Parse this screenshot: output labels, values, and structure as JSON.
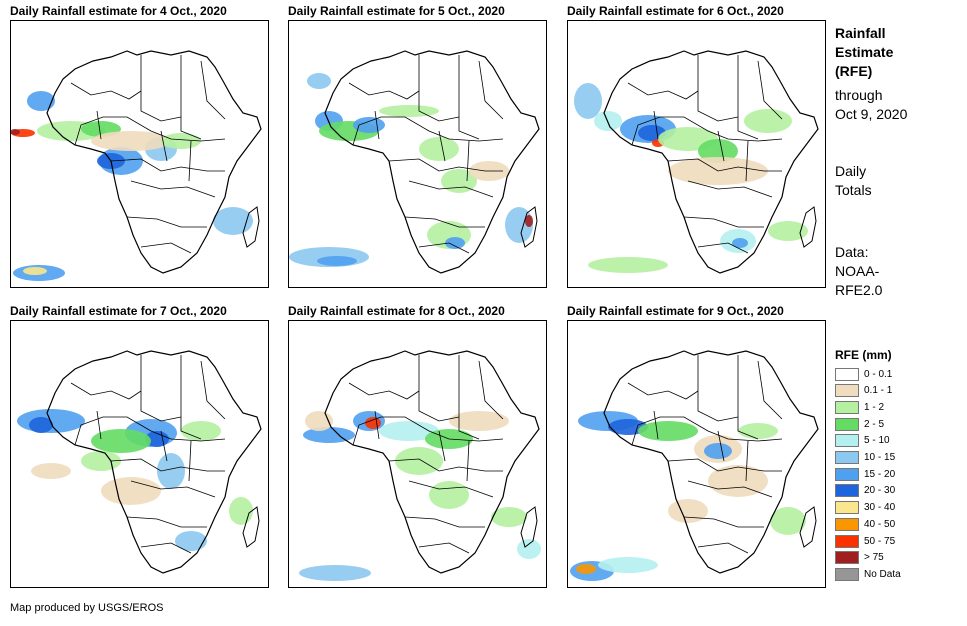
{
  "panels": [
    {
      "title": "Daily Rainfall estimate for 4 Oct., 2020"
    },
    {
      "title": "Daily Rainfall estimate for 5 Oct., 2020"
    },
    {
      "title": "Daily Rainfall estimate for 6 Oct., 2020"
    },
    {
      "title": "Daily Rainfall estimate for 7 Oct., 2020"
    },
    {
      "title": "Daily Rainfall estimate for 8 Oct., 2020"
    },
    {
      "title": "Daily Rainfall estimate for 9 Oct., 2020"
    }
  ],
  "sidebar": {
    "title_lines": [
      "Rainfall",
      "Estimate",
      "(RFE)"
    ],
    "through_lines": [
      "through",
      "Oct 9, 2020"
    ],
    "totals_lines": [
      "Daily",
      "Totals"
    ],
    "data_lines": [
      "Data:",
      "NOAA-",
      "RFE2.0"
    ]
  },
  "legend": {
    "title": "RFE (mm)",
    "items": [
      {
        "label": "0 - 0.1",
        "color": "#ffffff"
      },
      {
        "label": "0.1 - 1",
        "color": "#f0dcbe"
      },
      {
        "label": "1 - 2",
        "color": "#b4f0a0"
      },
      {
        "label": "2 - 5",
        "color": "#64dc64"
      },
      {
        "label": "5 - 10",
        "color": "#b4f0f0"
      },
      {
        "label": "10 - 15",
        "color": "#8cc8f0"
      },
      {
        "label": "15 - 20",
        "color": "#50a0f0"
      },
      {
        "label": "20 - 30",
        "color": "#1e64dc"
      },
      {
        "label": "30 - 40",
        "color": "#fae68c"
      },
      {
        "label": "40 - 50",
        "color": "#fa9600"
      },
      {
        "label": "50 - 75",
        "color": "#fa3200"
      },
      {
        "label": "> 75",
        "color": "#a01e1e"
      },
      {
        "label": "No Data",
        "color": "#969696"
      }
    ]
  },
  "credit": "Map produced by USGS/EROS"
}
